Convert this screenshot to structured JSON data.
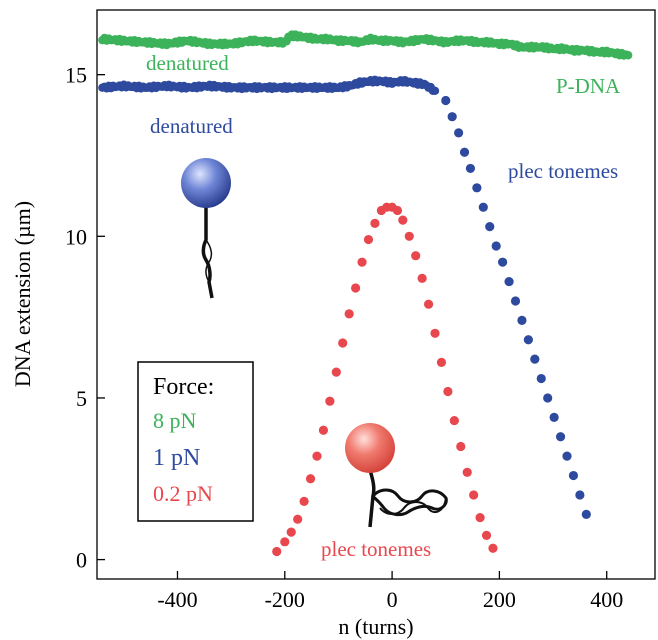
{
  "chart_data": {
    "type": "scatter",
    "title": "",
    "xlabel": "n (turns)",
    "ylabel": "DNA extension (µm)",
    "xlim": [
      -550,
      490
    ],
    "ylim": [
      -0.6,
      17.0
    ],
    "x_ticks": [
      -400,
      -200,
      0,
      200,
      400
    ],
    "y_ticks": [
      0,
      5,
      10,
      15
    ],
    "x_tick_labels": [
      "-400",
      "-200",
      "0",
      "200",
      "400"
    ],
    "y_tick_labels": [
      "0",
      "5",
      "10",
      "15"
    ],
    "grid": false,
    "legend": {
      "title": "Force:",
      "placement": "bottom-left",
      "entries": [
        "8 pN",
        "1 pN",
        "0.2 pN"
      ]
    },
    "colors": {
      "green": "#3cb35a",
      "blue": "#2e4a9e",
      "red": "#e8474e",
      "text": "#000000"
    },
    "annotations": [
      {
        "text": "denatured",
        "color": "#3cb35a"
      },
      {
        "text": "P-DNA",
        "color": "#3cb35a"
      },
      {
        "text": "denatured",
        "color": "#2e4a9e"
      },
      {
        "text": "plec tonemes",
        "color": "#2e4a9e"
      },
      {
        "text": "plec tonemes",
        "color": "#e8474e"
      }
    ],
    "series": [
      {
        "name": "8 pN",
        "color": "#3cb35a",
        "dense": true,
        "x": [
          -540,
          -500,
          -460,
          -420,
          -380,
          -340,
          -300,
          -260,
          -220,
          -200,
          -190,
          -180,
          -160,
          -140,
          -120,
          -100,
          -80,
          -60,
          -40,
          -20,
          0,
          20,
          40,
          60,
          80,
          100,
          120,
          140,
          160,
          180,
          200,
          220,
          240,
          260,
          280,
          300,
          320,
          340,
          360,
          380,
          400,
          420,
          440
        ],
        "y": [
          16.1,
          16.05,
          16.0,
          15.95,
          16.05,
          15.95,
          15.95,
          16.05,
          16.0,
          16.0,
          16.2,
          16.2,
          16.15,
          16.1,
          16.1,
          16.05,
          16.05,
          16.0,
          16.1,
          16.05,
          16.05,
          16.0,
          16.05,
          16.1,
          16.05,
          16.0,
          16.05,
          16.05,
          16.0,
          16.0,
          15.95,
          15.95,
          15.85,
          15.85,
          15.85,
          15.8,
          15.8,
          15.75,
          15.75,
          15.7,
          15.7,
          15.65,
          15.6
        ]
      },
      {
        "name": "1 pN",
        "color": "#2e4a9e",
        "dense": true,
        "x": [
          -540,
          -500,
          -460,
          -420,
          -380,
          -340,
          -300,
          -260,
          -220,
          -180,
          -140,
          -100,
          -80,
          -60,
          -40,
          -20,
          0,
          20,
          40,
          60,
          80
        ],
        "y": [
          14.6,
          14.65,
          14.6,
          14.65,
          14.6,
          14.65,
          14.6,
          14.6,
          14.6,
          14.6,
          14.6,
          14.6,
          14.65,
          14.75,
          14.8,
          14.8,
          14.75,
          14.8,
          14.75,
          14.7,
          14.5
        ]
      },
      {
        "name": "1 pN",
        "color": "#2e4a9e",
        "dense": false,
        "x": [
          100,
          112,
          124,
          135,
          146,
          158,
          170,
          182,
          194,
          206,
          218,
          230,
          242,
          254,
          266,
          278,
          290,
          302,
          314,
          326,
          338,
          350,
          362
        ],
        "y": [
          14.2,
          13.7,
          13.2,
          12.6,
          12.1,
          11.5,
          10.9,
          10.3,
          9.7,
          9.2,
          8.6,
          8.0,
          7.4,
          6.8,
          6.2,
          5.6,
          5.0,
          4.4,
          3.8,
          3.2,
          2.6,
          2.0,
          1.4
        ]
      },
      {
        "name": "0.2 pN",
        "color": "#e8474e",
        "dense": false,
        "x": [
          -215,
          -200,
          -188,
          -176,
          -164,
          -152,
          -140,
          -128,
          -116,
          -104,
          -92,
          -80,
          -68,
          -56,
          -44,
          -32,
          -20,
          -10,
          0,
          10,
          20,
          32,
          44,
          56,
          68,
          80,
          92,
          104,
          116,
          128,
          140,
          152,
          164,
          176,
          188
        ],
        "y": [
          0.25,
          0.55,
          0.85,
          1.25,
          1.8,
          2.5,
          3.2,
          4.0,
          4.9,
          5.8,
          6.7,
          7.6,
          8.4,
          9.2,
          9.9,
          10.4,
          10.8,
          10.9,
          10.9,
          10.8,
          10.5,
          10.0,
          9.4,
          8.7,
          7.9,
          7.0,
          6.1,
          5.2,
          4.3,
          3.5,
          2.7,
          2.0,
          1.3,
          0.75,
          0.35
        ]
      }
    ]
  }
}
